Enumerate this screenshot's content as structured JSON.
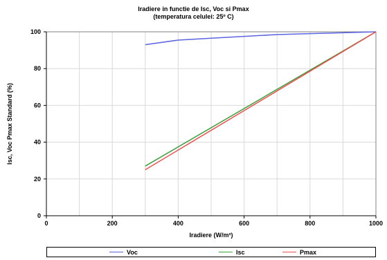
{
  "chart_data": {
    "type": "line",
    "title": "Iradiere in functie de Isc, Voc si Pmax",
    "subtitle": "(temperatura celulei: 25º C)",
    "xlabel": "Iradiere (W/m²)",
    "ylabel": "Isc, Voc  Pmax Standard (%)",
    "xlim": [
      0,
      1000
    ],
    "ylim": [
      0,
      100
    ],
    "xticks": [
      0,
      200,
      400,
      600,
      800,
      1000
    ],
    "yticks": [
      0,
      20,
      40,
      60,
      80,
      100
    ],
    "grid": true,
    "legend_position": "bottom",
    "series": [
      {
        "name": "Voc",
        "color": "#5b64e0",
        "x": [
          300,
          400,
          500,
          600,
          700,
          800,
          900,
          1000
        ],
        "y": [
          93,
          95.5,
          96.5,
          97.5,
          98.5,
          99,
          99.5,
          100
        ]
      },
      {
        "name": "Isc",
        "color": "#3aa03a",
        "x": [
          300,
          1000
        ],
        "y": [
          27,
          100
        ]
      },
      {
        "name": "Pmax",
        "color": "#ee4d4d",
        "x": [
          300,
          1000
        ],
        "y": [
          25,
          100
        ]
      }
    ]
  }
}
